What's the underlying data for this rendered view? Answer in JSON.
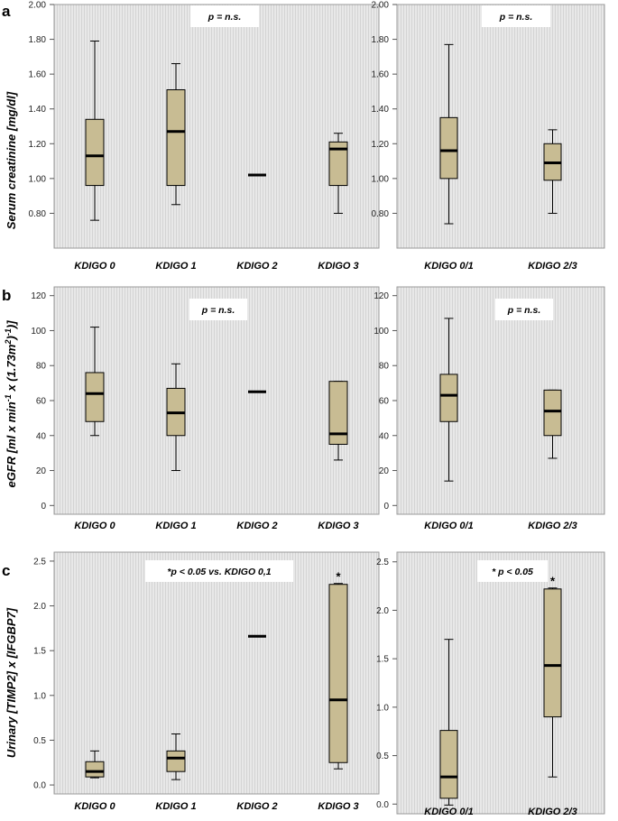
{
  "rows": [
    {
      "panel_label": "a",
      "ylabel": "Serum creatinine [mg/dl]",
      "left": {
        "annotation": "p = n.s.",
        "yticks": [
          "2.00",
          "1.80",
          "1.60",
          "1.40",
          "1.20",
          "1.00",
          "0.80"
        ],
        "xlabels": [
          "KDIGO 0",
          "KDIGO 1",
          "KDIGO 2",
          "KDIGO 3"
        ]
      },
      "right": {
        "annotation": "p = n.s.",
        "yticks": [
          "2.00",
          "1.80",
          "1.60",
          "1.40",
          "1.20",
          "1.00",
          "0.80"
        ],
        "xlabels": [
          "KDIGO 0/1",
          "KDIGO 2/3"
        ]
      }
    },
    {
      "panel_label": "b",
      "ylabel": "eGFR [ml x min",
      "ylabel_sup1": "-1",
      "ylabel_mid": " x (1.73m",
      "ylabel_sup2": "2",
      "ylabel_mid2": ")",
      "ylabel_sup3": "-1",
      "ylabel_end": ")]",
      "left": {
        "annotation": "p = n.s.",
        "yticks": [
          "120",
          "100",
          "80",
          "60",
          "40",
          "20",
          "0"
        ],
        "xlabels": [
          "KDIGO 0",
          "KDIGO 1",
          "KDIGO 2",
          "KDIGO 3"
        ]
      },
      "right": {
        "annotation": "p = n.s.",
        "yticks": [
          "120",
          "100",
          "80",
          "60",
          "40",
          "20",
          "0"
        ],
        "xlabels": [
          "KDIGO 0/1",
          "KDIGO 2/3"
        ]
      }
    },
    {
      "panel_label": "c",
      "ylabel": "Urinary [TIMP2] x [IFGBP7]",
      "left": {
        "annotation": "*p < 0.05 vs. KDIGO 0,1",
        "yticks": [
          "2.5",
          "2.0",
          "1.5",
          "1.0",
          "0.5",
          "0.0"
        ],
        "xlabels": [
          "KDIGO 0",
          "KDIGO 1",
          "KDIGO 2",
          "KDIGO 3"
        ],
        "marker": "*"
      },
      "right": {
        "annotation": "* p < 0.05",
        "yticks": [
          "2.5",
          "2.0",
          "1.5",
          "1.0",
          "0.5",
          "0.0"
        ],
        "xlabels": [
          "KDIGO 0/1",
          "KDIGO 2/3"
        ],
        "marker": "*"
      }
    }
  ],
  "colors": {
    "box_fill": "#c8bc93",
    "plot_bg": "#e6e6e6",
    "hatch": "#d2d2d2"
  },
  "chart_data": [
    {
      "type": "box",
      "panel": "a-left",
      "ylabel": "Serum creatinine [mg/dl]",
      "categories": [
        "KDIGO 0",
        "KDIGO 1",
        "KDIGO 2",
        "KDIGO 3"
      ],
      "ylim": [
        0.6,
        2.0
      ],
      "boxes": [
        {
          "min": 0.76,
          "q1": 0.96,
          "median": 1.13,
          "q3": 1.34,
          "max": 1.79
        },
        {
          "min": 0.85,
          "q1": 0.96,
          "median": 1.27,
          "q3": 1.51,
          "max": 1.66
        },
        {
          "min": 1.02,
          "q1": 1.02,
          "median": 1.02,
          "q3": 1.02,
          "max": 1.02
        },
        {
          "min": 0.8,
          "q1": 0.96,
          "median": 1.17,
          "q3": 1.21,
          "max": 1.26
        }
      ]
    },
    {
      "type": "box",
      "panel": "a-right",
      "categories": [
        "KDIGO 0/1",
        "KDIGO 2/3"
      ],
      "ylim": [
        0.6,
        2.0
      ],
      "boxes": [
        {
          "min": 0.74,
          "q1": 1.0,
          "median": 1.16,
          "q3": 1.35,
          "max": 1.77
        },
        {
          "min": 0.8,
          "q1": 0.99,
          "median": 1.09,
          "q3": 1.2,
          "max": 1.28
        }
      ]
    },
    {
      "type": "box",
      "panel": "b-left",
      "categories": [
        "KDIGO 0",
        "KDIGO 1",
        "KDIGO 2",
        "KDIGO 3"
      ],
      "ylim": [
        -5,
        120
      ],
      "boxes": [
        {
          "min": 40,
          "q1": 48,
          "median": 64,
          "q3": 76,
          "max": 102
        },
        {
          "min": 20,
          "q1": 40,
          "median": 53,
          "q3": 67,
          "max": 81
        },
        {
          "min": 65,
          "q1": 65,
          "median": 65,
          "q3": 65,
          "max": 65
        },
        {
          "min": 26,
          "q1": 35,
          "median": 41,
          "q3": 71,
          "max": 71
        }
      ]
    },
    {
      "type": "box",
      "panel": "b-right",
      "categories": [
        "KDIGO 0/1",
        "KDIGO 2/3"
      ],
      "ylim": [
        -5,
        120
      ],
      "boxes": [
        {
          "min": 14,
          "q1": 48,
          "median": 63,
          "q3": 75,
          "max": 107
        },
        {
          "min": 27,
          "q1": 40,
          "median": 54,
          "q3": 66,
          "max": 66
        }
      ]
    },
    {
      "type": "box",
      "panel": "c-left",
      "categories": [
        "KDIGO 0",
        "KDIGO 1",
        "KDIGO 2",
        "KDIGO 3"
      ],
      "ylim": [
        -0.1,
        2.5
      ],
      "boxes": [
        {
          "min": 0.08,
          "q1": 0.09,
          "median": 0.15,
          "q3": 0.26,
          "max": 0.38
        },
        {
          "min": 0.06,
          "q1": 0.15,
          "median": 0.3,
          "q3": 0.38,
          "max": 0.57
        },
        {
          "min": 1.66,
          "q1": 1.66,
          "median": 1.66,
          "q3": 1.66,
          "max": 1.66
        },
        {
          "min": 0.18,
          "q1": 0.25,
          "median": 0.95,
          "q3": 2.24,
          "max": 2.25
        }
      ]
    },
    {
      "type": "box",
      "panel": "c-right",
      "categories": [
        "KDIGO 0/1",
        "KDIGO 2/3"
      ],
      "ylim": [
        -0.1,
        2.5
      ],
      "boxes": [
        {
          "min": -0.01,
          "q1": 0.06,
          "median": 0.28,
          "q3": 0.76,
          "max": 1.7
        },
        {
          "min": 0.28,
          "q1": 0.9,
          "median": 1.43,
          "q3": 2.22,
          "max": 2.23
        }
      ]
    }
  ]
}
